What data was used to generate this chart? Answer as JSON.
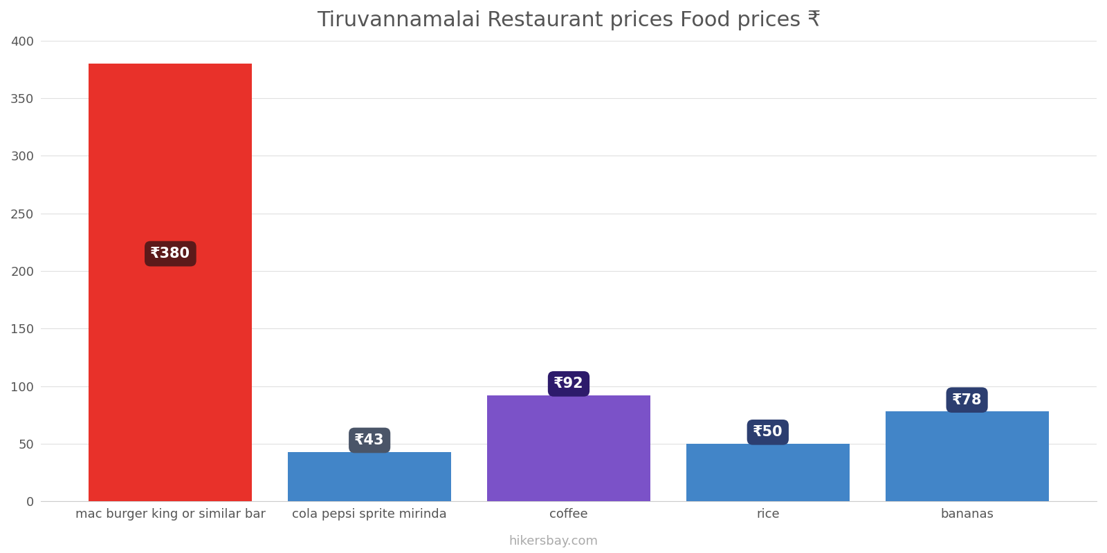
{
  "title": "Tiruvannamalai Restaurant prices Food prices ₹",
  "categories": [
    "mac burger king or similar bar",
    "cola pepsi sprite mirinda",
    "coffee",
    "rice",
    "bananas"
  ],
  "values": [
    380,
    43,
    92,
    50,
    78
  ],
  "bar_colors": [
    "#E8312A",
    "#4285C8",
    "#7B52C8",
    "#4285C8",
    "#4285C8"
  ],
  "label_bg_colors": [
    "#5C1A1A",
    "#4A5568",
    "#2D1B6B",
    "#2C3E70",
    "#2C3E70"
  ],
  "ylim": [
    0,
    400
  ],
  "yticks": [
    0,
    50,
    100,
    150,
    200,
    250,
    300,
    350,
    400
  ],
  "background_color": "#ffffff",
  "watermark": "hikersbay.com",
  "title_fontsize": 22,
  "label_fontsize": 15,
  "tick_fontsize": 13,
  "watermark_fontsize": 13,
  "bar_width": 0.82
}
